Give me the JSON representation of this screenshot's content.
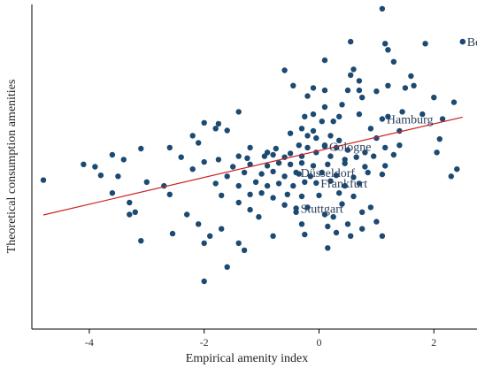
{
  "chart_data": {
    "type": "scatter",
    "xlabel": "Empirical amenity index",
    "ylabel": "Theoretical consumption amenities",
    "xlim": [
      -5.0,
      2.75
    ],
    "ylim": [
      -3.5,
      3.3
    ],
    "x_ticks": [
      -4,
      -2,
      0,
      2
    ],
    "x_tick_labels": [
      "-4",
      "-2",
      "0",
      "2"
    ],
    "point_color": "#1c4a72",
    "fit_line_color": "#cc2222",
    "fit_line": {
      "x": [
        -4.8,
        2.5
      ],
      "y": [
        -1.11,
        0.94
      ]
    },
    "labeled_points": [
      {
        "label": "Berlin",
        "x": 2.5,
        "y": 2.52
      },
      {
        "label": "Hamburg",
        "x": 1.1,
        "y": 0.9
      },
      {
        "label": "Cologne",
        "x": 0.1,
        "y": 0.33
      },
      {
        "label": "Düsseldorf",
        "x": -0.4,
        "y": -0.22
      },
      {
        "label": "Frankfurt",
        "x": -0.05,
        "y": -0.44
      },
      {
        "label": "Stuttgart",
        "x": -0.4,
        "y": -0.97
      }
    ],
    "points": [
      [
        1.1,
        3.21
      ],
      [
        1.85,
        2.48
      ],
      [
        2.5,
        2.52
      ],
      [
        0.55,
        2.52
      ],
      [
        1.15,
        2.48
      ],
      [
        1.2,
        2.35
      ],
      [
        0.1,
        2.13
      ],
      [
        1.3,
        2.1
      ],
      [
        -0.6,
        1.92
      ],
      [
        0.6,
        1.94
      ],
      [
        0.7,
        1.7
      ],
      [
        0.55,
        1.82
      ],
      [
        1.6,
        1.8
      ],
      [
        1.2,
        1.6
      ],
      [
        1.5,
        1.55
      ],
      [
        1.65,
        1.6
      ],
      [
        -0.45,
        1.6
      ],
      [
        -0.1,
        1.55
      ],
      [
        0.1,
        1.5
      ],
      [
        0.5,
        1.5
      ],
      [
        0.7,
        1.5
      ],
      [
        1.0,
        1.48
      ],
      [
        -0.2,
        1.38
      ],
      [
        0.75,
        1.35
      ],
      [
        2.0,
        1.35
      ],
      [
        2.35,
        1.25
      ],
      [
        0.4,
        1.2
      ],
      [
        0.1,
        1.15
      ],
      [
        -1.4,
        1.05
      ],
      [
        -0.1,
        1.0
      ],
      [
        -0.25,
        0.95
      ],
      [
        0.35,
        0.95
      ],
      [
        0.7,
        1.0
      ],
      [
        1.45,
        1.05
      ],
      [
        1.2,
        0.95
      ],
      [
        1.8,
        1.0
      ],
      [
        2.15,
        0.9
      ],
      [
        0.05,
        0.85
      ],
      [
        0.25,
        0.85
      ],
      [
        -2.0,
        0.82
      ],
      [
        -1.75,
        0.8
      ],
      [
        -1.8,
        0.7
      ],
      [
        -1.6,
        0.66
      ],
      [
        -0.3,
        0.7
      ],
      [
        0.9,
        0.7
      ],
      [
        1.4,
        0.65
      ],
      [
        -0.5,
        0.6
      ],
      [
        -0.2,
        0.55
      ],
      [
        0.2,
        0.55
      ],
      [
        -0.1,
        0.65
      ],
      [
        -0.05,
        0.5
      ],
      [
        0.35,
        0.45
      ],
      [
        1.0,
        0.5
      ],
      [
        2.1,
        0.48
      ],
      [
        -2.1,
        0.4
      ],
      [
        -2.6,
        0.3
      ],
      [
        -3.1,
        0.28
      ],
      [
        -0.9,
        0.2
      ],
      [
        -1.2,
        0.3
      ],
      [
        -0.75,
        0.28
      ],
      [
        -0.35,
        0.35
      ],
      [
        -0.2,
        0.3
      ],
      [
        0.1,
        0.35
      ],
      [
        0.3,
        0.3
      ],
      [
        0.5,
        0.25
      ],
      [
        0.8,
        0.2
      ],
      [
        1.15,
        0.3
      ],
      [
        1.4,
        0.35
      ],
      [
        -3.6,
        0.15
      ],
      [
        -3.4,
        0.05
      ],
      [
        -2.4,
        0.1
      ],
      [
        -2.0,
        0.0
      ],
      [
        -1.75,
        0.05
      ],
      [
        -1.4,
        0.12
      ],
      [
        -1.25,
        0.08
      ],
      [
        -0.95,
        0.12
      ],
      [
        -0.8,
        0.15
      ],
      [
        -0.6,
        0.1
      ],
      [
        -0.5,
        0.18
      ],
      [
        -0.3,
        0.12
      ],
      [
        -0.05,
        0.2
      ],
      [
        0.2,
        0.12
      ],
      [
        0.45,
        0.05
      ],
      [
        0.65,
        0.1
      ],
      [
        0.95,
        0.12
      ],
      [
        1.3,
        0.15
      ],
      [
        2.05,
        0.2
      ],
      [
        -4.1,
        -0.05
      ],
      [
        -3.9,
        -0.1
      ],
      [
        -2.2,
        -0.15
      ],
      [
        -1.5,
        -0.1
      ],
      [
        -1.2,
        -0.05
      ],
      [
        -0.9,
        -0.08
      ],
      [
        -0.7,
        -0.02
      ],
      [
        -0.5,
        -0.05
      ],
      [
        -0.3,
        -0.02
      ],
      [
        -0.1,
        -0.08
      ],
      [
        0.15,
        -0.05
      ],
      [
        0.45,
        -0.03
      ],
      [
        0.8,
        -0.1
      ],
      [
        1.15,
        -0.08
      ],
      [
        2.4,
        -0.15
      ],
      [
        -3.8,
        -0.28
      ],
      [
        -3.5,
        -0.3
      ],
      [
        -1.6,
        -0.3
      ],
      [
        -1.3,
        -0.22
      ],
      [
        -1.0,
        -0.25
      ],
      [
        -0.8,
        -0.2
      ],
      [
        -0.6,
        -0.3
      ],
      [
        -0.35,
        -0.25
      ],
      [
        -0.15,
        -0.3
      ],
      [
        0.05,
        -0.22
      ],
      [
        0.3,
        -0.28
      ],
      [
        0.6,
        -0.32
      ],
      [
        0.85,
        -0.22
      ],
      [
        1.1,
        -0.26
      ],
      [
        2.3,
        -0.3
      ],
      [
        -3.0,
        -0.42
      ],
      [
        -2.7,
        -0.5
      ],
      [
        -1.8,
        -0.45
      ],
      [
        -1.4,
        -0.5
      ],
      [
        -1.1,
        -0.42
      ],
      [
        -0.9,
        -0.5
      ],
      [
        -0.7,
        -0.45
      ],
      [
        -0.45,
        -0.5
      ],
      [
        -0.25,
        -0.42
      ],
      [
        0.2,
        -0.4
      ],
      [
        0.45,
        -0.5
      ],
      [
        0.7,
        -0.45
      ],
      [
        -3.6,
        -0.65
      ],
      [
        -2.6,
        -0.68
      ],
      [
        -1.7,
        -0.7
      ],
      [
        -1.2,
        -0.68
      ],
      [
        -1.0,
        -0.65
      ],
      [
        -0.8,
        -0.75
      ],
      [
        -0.55,
        -0.68
      ],
      [
        -0.3,
        -0.72
      ],
      [
        0.0,
        -0.7
      ],
      [
        0.35,
        -0.65
      ],
      [
        0.6,
        -0.72
      ],
      [
        -3.3,
        -0.85
      ],
      [
        -1.4,
        -0.85
      ],
      [
        -0.6,
        -0.9
      ],
      [
        -0.2,
        -0.95
      ],
      [
        0.4,
        -0.88
      ],
      [
        0.9,
        -0.95
      ],
      [
        -3.2,
        -1.05
      ],
      [
        -3.3,
        -1.1
      ],
      [
        -2.3,
        -1.1
      ],
      [
        -1.2,
        -1.0
      ],
      [
        -1.05,
        -1.15
      ],
      [
        -0.4,
        -1.05
      ],
      [
        0.1,
        -1.1
      ],
      [
        0.25,
        -1.15
      ],
      [
        0.75,
        -1.05
      ],
      [
        -2.1,
        -1.3
      ],
      [
        -1.7,
        -1.4
      ],
      [
        -0.3,
        -1.3
      ],
      [
        0.15,
        -1.35
      ],
      [
        0.5,
        -1.3
      ],
      [
        1.0,
        -1.25
      ],
      [
        0.75,
        -1.4
      ],
      [
        -2.55,
        -1.5
      ],
      [
        -1.9,
        -1.55
      ],
      [
        -0.8,
        -1.55
      ],
      [
        -0.25,
        -1.52
      ],
      [
        0.3,
        -1.48
      ],
      [
        0.55,
        -1.55
      ],
      [
        1.1,
        -1.55
      ],
      [
        -3.1,
        -1.65
      ],
      [
        -2.0,
        -1.7
      ],
      [
        -1.4,
        -1.7
      ],
      [
        0.15,
        -1.8
      ],
      [
        -1.3,
        -1.85
      ],
      [
        -1.6,
        -2.2
      ],
      [
        -2.0,
        -2.5
      ],
      [
        -4.8,
        -0.38
      ],
      [
        -2.2,
        0.55
      ]
    ]
  }
}
